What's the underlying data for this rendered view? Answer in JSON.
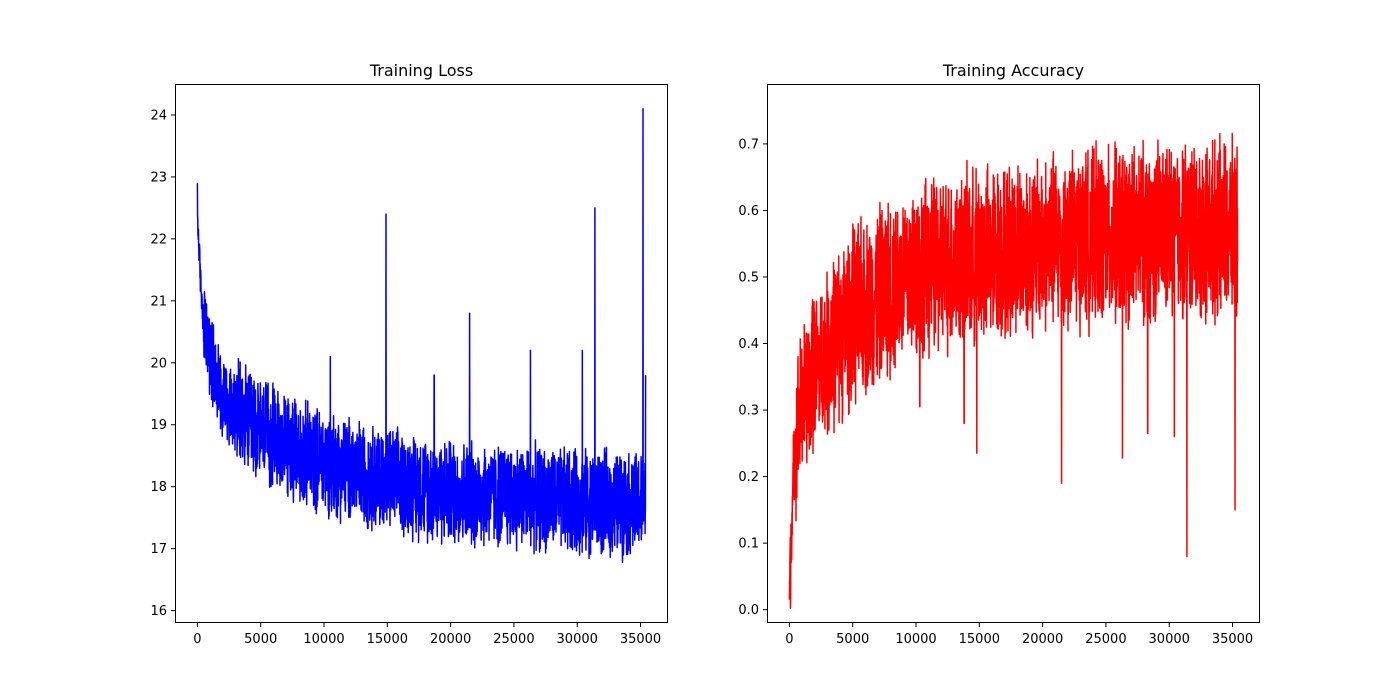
{
  "chart_data": [
    {
      "type": "line",
      "title": "Training Loss",
      "xlabel": "",
      "ylabel": "",
      "xlim": [
        -1770,
        37170
      ],
      "ylim": [
        15.8,
        24.5
      ],
      "xticks": [
        0,
        5000,
        10000,
        15000,
        20000,
        25000,
        30000,
        35000
      ],
      "yticks": [
        16,
        17,
        18,
        19,
        20,
        21,
        22,
        23,
        24
      ],
      "grid": false,
      "color": "#0000ff",
      "series": [
        {
          "trend": [
            [
              0,
              22.4
            ],
            [
              200,
              21.5
            ],
            [
              500,
              20.6
            ],
            [
              1000,
              20.1
            ],
            [
              2000,
              19.5
            ],
            [
              3000,
              19.2
            ],
            [
              5000,
              18.9
            ],
            [
              7500,
              18.6
            ],
            [
              10000,
              18.4
            ],
            [
              15000,
              18.1
            ],
            [
              20000,
              17.9
            ],
            [
              25000,
              17.85
            ],
            [
              30000,
              17.75
            ],
            [
              35400,
              17.7
            ]
          ],
          "spikes": [
            [
              0,
              22.9
            ],
            [
              14900,
              22.4
            ],
            [
              21500,
              20.8
            ],
            [
              26300,
              20.2
            ],
            [
              30400,
              20.2
            ],
            [
              31400,
              22.5
            ],
            [
              35200,
              24.1
            ],
            [
              35400,
              19.8
            ],
            [
              10500,
              20.1
            ],
            [
              18700,
              19.8
            ]
          ]
        }
      ]
    },
    {
      "type": "line",
      "title": "Training Accuracy",
      "xlabel": "",
      "ylabel": "",
      "xlim": [
        -1770,
        37170
      ],
      "ylim": [
        -0.02,
        0.79
      ],
      "xticks": [
        0,
        5000,
        10000,
        15000,
        20000,
        25000,
        30000,
        35000
      ],
      "yticks": [
        0.0,
        0.1,
        0.2,
        0.3,
        0.4,
        0.5,
        0.6,
        0.7
      ],
      "grid": false,
      "color": "#ff0000",
      "series": [
        {
          "trend": [
            [
              0,
              0.02
            ],
            [
              200,
              0.15
            ],
            [
              500,
              0.26
            ],
            [
              1000,
              0.31
            ],
            [
              2000,
              0.36
            ],
            [
              3000,
              0.39
            ],
            [
              5000,
              0.44
            ],
            [
              7500,
              0.48
            ],
            [
              10000,
              0.51
            ],
            [
              15000,
              0.53
            ],
            [
              20000,
              0.55
            ],
            [
              25000,
              0.56
            ],
            [
              30000,
              0.57
            ],
            [
              35400,
              0.57
            ]
          ],
          "dips": [
            [
              0,
              0.015
            ],
            [
              14800,
              0.235
            ],
            [
              21500,
              0.19
            ],
            [
              26300,
              0.228
            ],
            [
              28300,
              0.265
            ],
            [
              30400,
              0.26
            ],
            [
              31400,
              0.08
            ],
            [
              35200,
              0.15
            ],
            [
              13800,
              0.28
            ],
            [
              10300,
              0.305
            ]
          ]
        }
      ]
    }
  ]
}
